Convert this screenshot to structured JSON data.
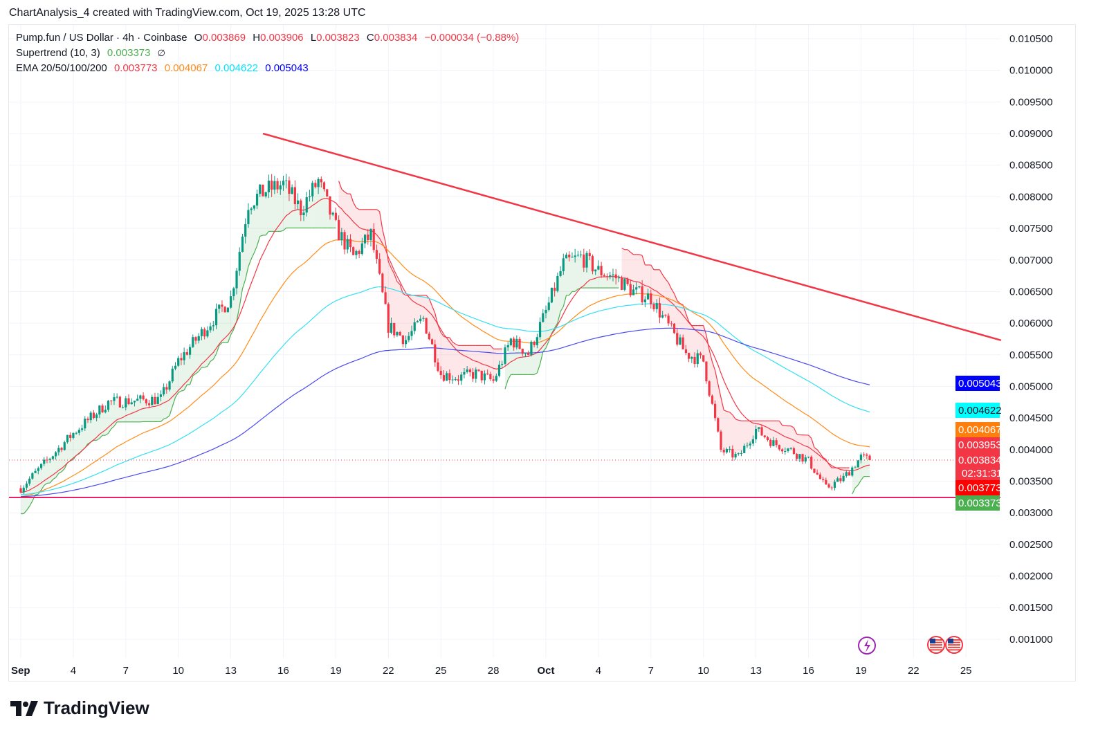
{
  "caption": "ChartAnalysis_4 created with TradingView.com, Oct 19, 2025 13:28 UTC",
  "legend": {
    "symbol": "Pump.fun / US Dollar · 4h · Coinbase",
    "o_label": "O",
    "o": "0.003869",
    "h_label": "H",
    "h": "0.003906",
    "l_label": "L",
    "l": "0.003823",
    "c_label": "C",
    "c": "0.003834",
    "change": "−0.000034 (−0.88%)",
    "supertrend_label": "Supertrend (10, 3)",
    "supertrend_value": "0.003373",
    "supertrend_icon": "∅",
    "ema_label": "EMA 20/50/100/200",
    "ema_values": [
      "0.003773",
      "0.004067",
      "0.004622",
      "0.005043"
    ]
  },
  "colors": {
    "up": "#089981",
    "down": "#f23645",
    "ema20": "#f23645",
    "ema50": "#ff8c1a",
    "ema100": "#33e0f0",
    "ema200": "#4a4af0",
    "st_up": "#4caf50",
    "st_down": "#f23645",
    "trendline": "#f23645",
    "support": "#e91e63"
  },
  "logo": "TradingView",
  "chart_data": {
    "type": "candlestick",
    "interval": "4h",
    "ylim": [
      0.0005,
      0.0108
    ],
    "y_ticks": [
      "0.010500",
      "0.010000",
      "0.009500",
      "0.009000",
      "0.008500",
      "0.008000",
      "0.007500",
      "0.007000",
      "0.006500",
      "0.006000",
      "0.005500",
      "0.005000",
      "0.004500",
      "0.004000",
      "0.003500",
      "0.003000",
      "0.002500",
      "0.002000",
      "0.001500",
      "0.001000"
    ],
    "x_ticks": [
      {
        "label": "Sep",
        "day": 0
      },
      {
        "label": "4",
        "day": 3
      },
      {
        "label": "7",
        "day": 6
      },
      {
        "label": "10",
        "day": 9
      },
      {
        "label": "13",
        "day": 12
      },
      {
        "label": "16",
        "day": 15
      },
      {
        "label": "19",
        "day": 18
      },
      {
        "label": "22",
        "day": 21
      },
      {
        "label": "25",
        "day": 24
      },
      {
        "label": "28",
        "day": 27
      },
      {
        "label": "Oct",
        "day": 30
      },
      {
        "label": "4",
        "day": 33
      },
      {
        "label": "7",
        "day": 36
      },
      {
        "label": "10",
        "day": 39
      },
      {
        "label": "13",
        "day": 42
      },
      {
        "label": "16",
        "day": 45
      },
      {
        "label": "19",
        "day": 48
      },
      {
        "label": "22",
        "day": 51
      },
      {
        "label": "25",
        "day": 54
      }
    ],
    "approx_close_path": [
      [
        "Sep 1",
        0.00339
      ],
      [
        "Sep 4",
        0.00426
      ],
      [
        "Sep 6",
        0.00475
      ],
      [
        "Sep 9",
        0.0048
      ],
      [
        "Sep 10",
        0.0054
      ],
      [
        "Sep 12",
        0.00607
      ],
      [
        "Sep 13",
        0.0064
      ],
      [
        "Sep 14",
        0.0079
      ],
      [
        "Sep 15",
        0.0081
      ],
      [
        "Sep 16",
        0.0082
      ],
      [
        "Sep 17",
        0.0078
      ],
      [
        "Sep 18",
        0.00825
      ],
      [
        "Sep 19",
        0.0075
      ],
      [
        "Sep 20",
        0.00705
      ],
      [
        "Sep 21",
        0.0074
      ],
      [
        "Sep 22",
        0.00595
      ],
      [
        "Sep 23",
        0.00574
      ],
      [
        "Sep 24",
        0.00607
      ],
      [
        "Sep 25",
        0.0052
      ],
      [
        "Sep 26",
        0.00514
      ],
      [
        "Sep 27",
        0.0052
      ],
      [
        "Sep 28",
        0.00508
      ],
      [
        "Sep 29",
        0.00574
      ],
      [
        "Sep 30",
        0.00552
      ],
      [
        "Oct 1",
        0.00618
      ],
      [
        "Oct 2",
        0.00694
      ],
      [
        "Oct 3",
        0.00705
      ],
      [
        "Oct 4",
        0.00683
      ],
      [
        "Oct 5",
        0.00672
      ],
      [
        "Oct 6",
        0.0065
      ],
      [
        "Oct 7",
        0.0064
      ],
      [
        "Oct 8",
        0.00595
      ],
      [
        "Oct 9",
        0.00552
      ],
      [
        "Oct 10",
        0.0054
      ],
      [
        "Oct 11",
        0.00399
      ],
      [
        "Oct 12",
        0.00388
      ],
      [
        "Oct 13",
        0.00432
      ],
      [
        "Oct 14",
        0.0041
      ],
      [
        "Oct 15",
        0.00399
      ],
      [
        "Oct 16",
        0.00382
      ],
      [
        "Oct 17",
        0.00339
      ],
      [
        "Oct 18",
        0.00355
      ],
      [
        "Oct 19",
        0.00388
      ],
      [
        "Oct 19 13:28",
        0.003834
      ]
    ],
    "annotations": {
      "descending_trendline": {
        "from": [
          "Sep 14 20:00",
          0.009
        ],
        "to": [
          "Oct 27",
          0.00573
        ]
      },
      "support_line": 0.003243
    },
    "price_badges": [
      {
        "value": "0.005043",
        "color": "#0000ff",
        "text": "#ffffff"
      },
      {
        "value": "0.004622",
        "color": "#00ffff",
        "text": "#131722"
      },
      {
        "value": "0.004067",
        "color": "#ff7f0e",
        "text": "#ffffff"
      },
      {
        "value": "0.003953",
        "color": "#f23645",
        "text": "#ffffff"
      },
      {
        "value": "0.003834",
        "color": "#f23645",
        "text": "#ffffff",
        "sub": "02:31:31"
      },
      {
        "value": "0.003773",
        "color": "#ff0000",
        "text": "#ffffff"
      },
      {
        "value": "0.003373",
        "color": "#4caf50",
        "text": "#ffffff"
      }
    ],
    "event_icons": [
      "lightning-icon",
      "us-flag-icon",
      "us-flag-icon"
    ]
  }
}
